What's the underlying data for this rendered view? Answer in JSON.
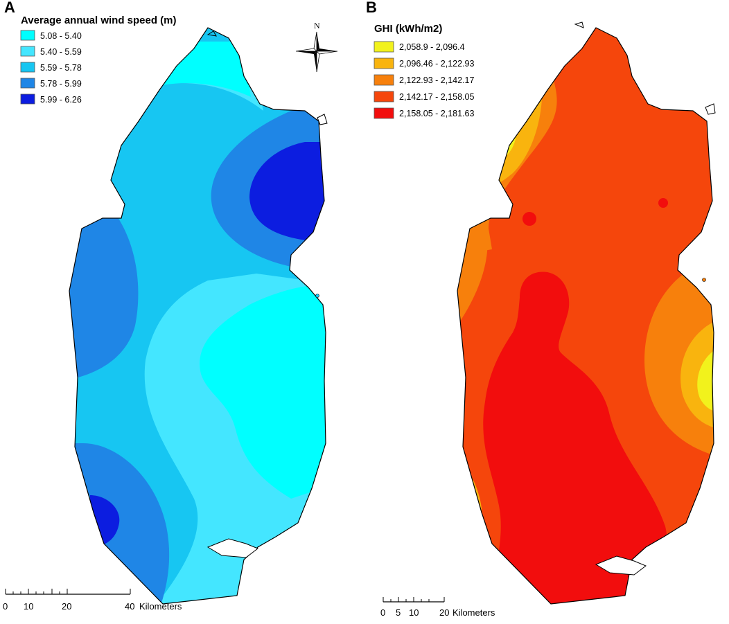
{
  "panel_a": {
    "letter": "A",
    "legend": {
      "title": "Average annual wind speed (m)",
      "items": [
        {
          "label": "5.08 - 5.40",
          "color": "#00ffff"
        },
        {
          "label": "5.40 - 5.59",
          "color": "#44e6ff"
        },
        {
          "label": "5.59 - 5.78",
          "color": "#17c6f2"
        },
        {
          "label": "5.78 - 5.99",
          "color": "#1f86e6"
        },
        {
          "label": "5.99 - 6.26",
          "color": "#0c1de0"
        }
      ]
    },
    "north_label": "N",
    "scale_bar": {
      "ticks": [
        "0",
        "10",
        "20",
        "40"
      ],
      "unit": "Kilometers"
    }
  },
  "panel_b": {
    "letter": "B",
    "legend": {
      "title": "GHI (kWh/m2)",
      "items": [
        {
          "label": "2,058.9 - 2,096.4",
          "color": "#f2f21c"
        },
        {
          "label": "2,096.46 - 2,122.93",
          "color": "#f9b40e"
        },
        {
          "label": "2,122.93 - 2,142.17",
          "color": "#f7800c"
        },
        {
          "label": "2,142.17 - 2,158.05",
          "color": "#f5460c"
        },
        {
          "label": "2,158.05 - 2,181.63",
          "color": "#f20d0d"
        }
      ]
    },
    "scale_bar": {
      "ticks": [
        "0",
        "5",
        "10",
        "20"
      ],
      "unit": "Kilometers"
    }
  }
}
